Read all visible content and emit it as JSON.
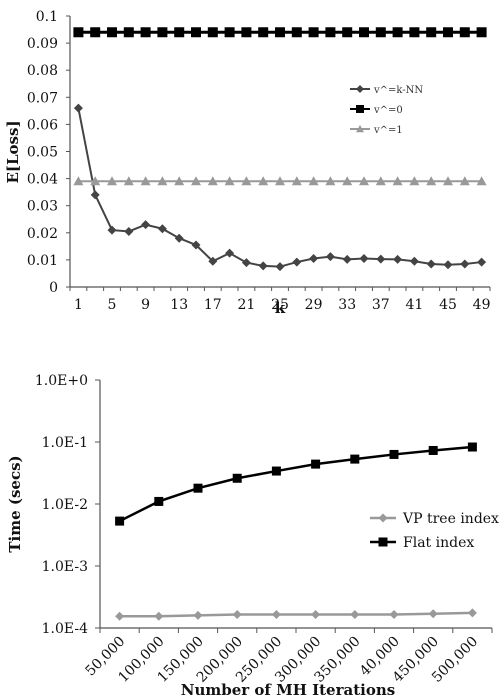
{
  "chart_data": [
    {
      "type": "line",
      "title": "",
      "xlabel": "k",
      "ylabel": "E[Loss]",
      "x": [
        1,
        3,
        5,
        7,
        9,
        11,
        13,
        15,
        17,
        19,
        21,
        23,
        25,
        27,
        29,
        31,
        33,
        35,
        37,
        39,
        41,
        43,
        45,
        47,
        49
      ],
      "x_tick_labels": [
        "1",
        "5",
        "9",
        "13",
        "17",
        "21",
        "25",
        "29",
        "33",
        "37",
        "41",
        "45",
        "49"
      ],
      "y_tick_labels": [
        "0",
        "0.01",
        "0.02",
        "0.03",
        "0.04",
        "0.05",
        "0.06",
        "0.07",
        "0.08",
        "0.09",
        "0.1"
      ],
      "ylim": [
        0,
        0.1
      ],
      "grid": false,
      "legend_position": "right",
      "series": [
        {
          "name": "v^=k-NN",
          "color": "#444444",
          "marker": "diamond",
          "values": [
            0.066,
            0.034,
            0.021,
            0.0205,
            0.023,
            0.0215,
            0.018,
            0.0155,
            0.0095,
            0.0125,
            0.009,
            0.0078,
            0.0075,
            0.0092,
            0.0105,
            0.0112,
            0.0102,
            0.0105,
            0.0103,
            0.0102,
            0.0095,
            0.0085,
            0.0082,
            0.0085,
            0.0092
          ]
        },
        {
          "name": "v^=0",
          "color": "#000000",
          "marker": "square",
          "values": [
            0.094,
            0.094,
            0.094,
            0.094,
            0.094,
            0.094,
            0.094,
            0.094,
            0.094,
            0.094,
            0.094,
            0.094,
            0.094,
            0.094,
            0.094,
            0.094,
            0.094,
            0.094,
            0.094,
            0.094,
            0.094,
            0.094,
            0.094,
            0.094,
            0.094
          ]
        },
        {
          "name": "v^=1",
          "color": "#999999",
          "marker": "triangle",
          "values": [
            0.039,
            0.039,
            0.039,
            0.039,
            0.039,
            0.039,
            0.039,
            0.039,
            0.039,
            0.039,
            0.039,
            0.039,
            0.039,
            0.039,
            0.039,
            0.039,
            0.039,
            0.039,
            0.039,
            0.039,
            0.039,
            0.039,
            0.039,
            0.039,
            0.039
          ]
        }
      ]
    },
    {
      "type": "line",
      "title": "",
      "xlabel": "Number of MH Iterations",
      "ylabel": "Time (secs)",
      "categories": [
        "50,000",
        "100,000",
        "150,000",
        "200,000",
        "250,000",
        "300,000",
        "350,000",
        "40,000",
        "450,000",
        "500,000"
      ],
      "y_scale": "log",
      "y_tick_labels": [
        "1.0E-4",
        "1.0E-3",
        "1.0E-2",
        "1.0E-1",
        "1.0E+0"
      ],
      "ylim": [
        0.0001,
        1
      ],
      "grid": false,
      "legend_position": "right",
      "series": [
        {
          "name": "VP tree index",
          "color": "#999999",
          "marker": "diamond",
          "values": [
            0.000155,
            0.000155,
            0.00016,
            0.000165,
            0.000165,
            0.000165,
            0.000165,
            0.000165,
            0.00017,
            0.000175
          ]
        },
        {
          "name": "Flat index",
          "color": "#000000",
          "marker": "square",
          "values": [
            0.0053,
            0.011,
            0.018,
            0.026,
            0.034,
            0.044,
            0.053,
            0.063,
            0.073,
            0.083
          ]
        }
      ]
    }
  ]
}
